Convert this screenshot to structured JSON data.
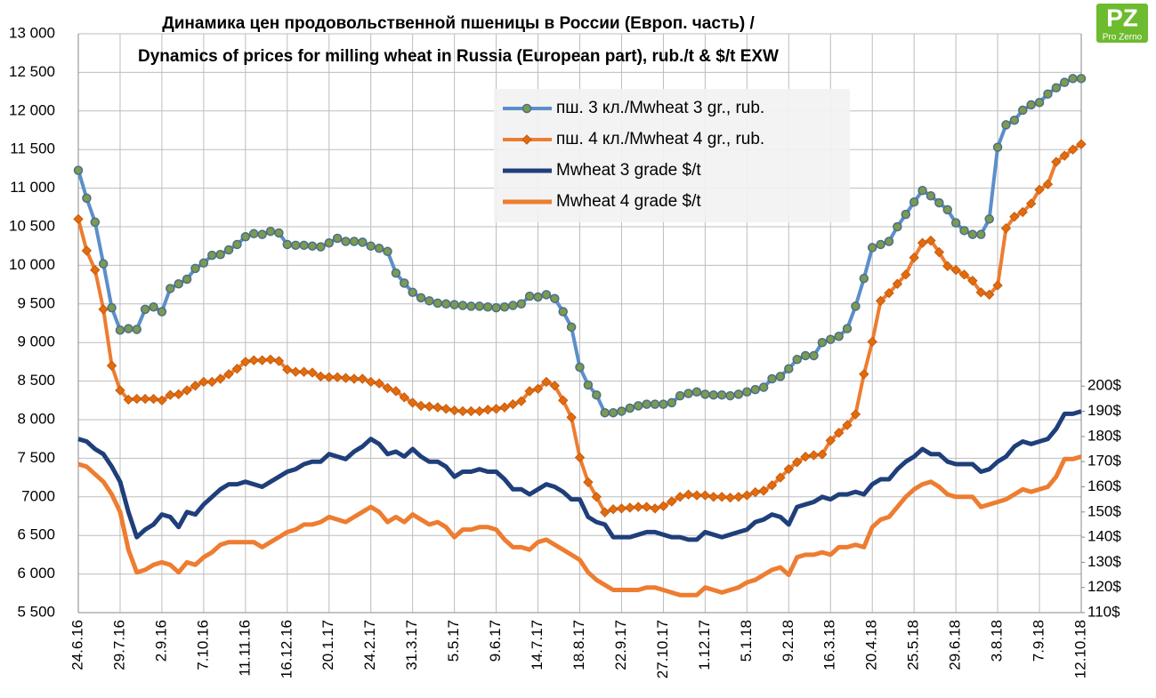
{
  "chart_data": {
    "type": "line",
    "title": "Динамика цен продовольственной пшеницы в России (Европ. часть) /",
    "subtitle": "Dynamics of prices for milling wheat in Russia (European part), rub./t & $/t EXW",
    "logo": {
      "mark": "PZ",
      "caption": "Pro Zerno"
    },
    "categories": [
      "24.6.16",
      null,
      null,
      null,
      null,
      "29.7.16",
      null,
      null,
      null,
      null,
      "2.9.16",
      null,
      null,
      null,
      null,
      "7.10.16",
      null,
      null,
      null,
      null,
      "11.11.16",
      null,
      null,
      null,
      null,
      "16.12.16",
      null,
      null,
      null,
      null,
      "20.1.17",
      null,
      null,
      null,
      null,
      "24.2.17",
      null,
      null,
      null,
      null,
      "31.3.17",
      null,
      null,
      null,
      null,
      "5.5.17",
      null,
      null,
      null,
      null,
      "9.6.17",
      null,
      null,
      null,
      null,
      "14.7.17",
      null,
      null,
      null,
      null,
      "18.8.17",
      null,
      null,
      null,
      null,
      "22.9.17",
      null,
      null,
      null,
      null,
      "27.10.17",
      null,
      null,
      null,
      null,
      "1.12.17",
      null,
      null,
      null,
      null,
      "5.1.18",
      null,
      null,
      null,
      null,
      "9.2.18",
      null,
      null,
      null,
      null,
      "16.3.18",
      null,
      null,
      null,
      null,
      "20.4.18",
      null,
      null,
      null,
      null,
      "25.5.18",
      null,
      null,
      null,
      null,
      "29.6.18",
      null,
      null,
      null,
      null,
      "3.8.18",
      null,
      null,
      null,
      null,
      "7.9.18",
      null,
      null,
      null,
      null,
      "12.10.18"
    ],
    "ylim": [
      5500,
      13000
    ],
    "yticks": [
      {
        "value": 5500,
        "label": "5 500"
      },
      {
        "value": 6000,
        "label": "6 000"
      },
      {
        "value": 6500,
        "label": "6 500"
      },
      {
        "value": 7000,
        "label": "7000"
      },
      {
        "value": 7500,
        "label": "7 500"
      },
      {
        "value": 8000,
        "label": "8 000"
      },
      {
        "value": 8500,
        "label": "8 500"
      },
      {
        "value": 9000,
        "label": "9 000"
      },
      {
        "value": 9500,
        "label": "9 500"
      },
      {
        "value": 10000,
        "label": "10 000"
      },
      {
        "value": 10500,
        "label": "10 500"
      },
      {
        "value": 11000,
        "label": "11 000"
      },
      {
        "value": 11500,
        "label": "11 500"
      },
      {
        "value": 12000,
        "label": "12 000"
      },
      {
        "value": 12500,
        "label": "12 500"
      },
      {
        "value": 13000,
        "label": "13 000"
      }
    ],
    "y2lim": [
      110,
      340
    ],
    "y2ticks": [
      {
        "value": 110,
        "label": "110$"
      },
      {
        "value": 120,
        "label": "120$"
      },
      {
        "value": 130,
        "label": "130$"
      },
      {
        "value": 140,
        "label": "140$"
      },
      {
        "value": 150,
        "label": "150$"
      },
      {
        "value": 160,
        "label": "160$"
      },
      {
        "value": 170,
        "label": "170$"
      },
      {
        "value": 180,
        "label": "180$"
      },
      {
        "value": 190,
        "label": "190$"
      },
      {
        "value": 200,
        "label": "200$"
      }
    ],
    "grid": true,
    "legend": "top-right",
    "series": [
      {
        "name": "пш. 3 кл./Mwheat 3 gr., rub.",
        "color": "#5b8fc9",
        "marker": "circle",
        "marker_color": "#7d9a4e",
        "axis": "y",
        "values": [
          11230,
          10870,
          10560,
          10020,
          9450,
          9160,
          9180,
          9170,
          9430,
          9460,
          9400,
          9700,
          9760,
          9820,
          9960,
          10030,
          10130,
          10140,
          10200,
          10270,
          10370,
          10410,
          10400,
          10440,
          10420,
          10270,
          10260,
          10260,
          10250,
          10240,
          10290,
          10350,
          10310,
          10310,
          10300,
          10250,
          10220,
          10180,
          9900,
          9770,
          9650,
          9580,
          9540,
          9510,
          9500,
          9490,
          9480,
          9470,
          9470,
          9460,
          9450,
          9460,
          9480,
          9500,
          9600,
          9590,
          9620,
          9570,
          9400,
          9200,
          8680,
          8450,
          8320,
          8090,
          8090,
          8110,
          8150,
          8180,
          8200,
          8200,
          8200,
          8220,
          8310,
          8340,
          8360,
          8330,
          8320,
          8320,
          8310,
          8330,
          8360,
          8390,
          8420,
          8530,
          8560,
          8660,
          8780,
          8830,
          8830,
          9000,
          9040,
          9080,
          9180,
          9470,
          9830,
          10230,
          10270,
          10310,
          10500,
          10660,
          10820,
          10970,
          10900,
          10810,
          10720,
          10550,
          10450,
          10400,
          10400,
          10600,
          11530,
          11820,
          11880,
          12010,
          12080,
          12110,
          12220,
          12300,
          12370,
          12420,
          12420
        ]
      },
      {
        "name": "пш. 4 кл./Mwheat 4 gr., rub.",
        "color": "#ed7d31",
        "marker": "diamond",
        "marker_color": "#e36c0a",
        "axis": "y",
        "values": [
          10600,
          10190,
          9940,
          9430,
          8700,
          8380,
          8260,
          8270,
          8270,
          8270,
          8250,
          8320,
          8330,
          8380,
          8440,
          8490,
          8490,
          8530,
          8590,
          8660,
          8750,
          8770,
          8770,
          8780,
          8760,
          8650,
          8620,
          8620,
          8610,
          8560,
          8550,
          8550,
          8540,
          8530,
          8530,
          8490,
          8470,
          8410,
          8370,
          8290,
          8220,
          8180,
          8170,
          8160,
          8140,
          8120,
          8110,
          8110,
          8110,
          8130,
          8140,
          8160,
          8200,
          8240,
          8370,
          8400,
          8490,
          8440,
          8250,
          8030,
          7510,
          7190,
          7000,
          6800,
          6840,
          6850,
          6860,
          6870,
          6870,
          6850,
          6880,
          6940,
          7000,
          7030,
          7020,
          7020,
          7000,
          7000,
          6990,
          7000,
          7020,
          7060,
          7080,
          7150,
          7250,
          7360,
          7450,
          7520,
          7540,
          7550,
          7730,
          7830,
          7930,
          8070,
          8590,
          9010,
          9540,
          9640,
          9760,
          9880,
          10100,
          10290,
          10320,
          10170,
          9990,
          9940,
          9880,
          9800,
          9650,
          9620,
          9740,
          10480,
          10630,
          10690,
          10800,
          10980,
          11050,
          11340,
          11420,
          11500,
          11570
        ]
      },
      {
        "name": "Mwheat 3 grade $/t",
        "color": "#1f3f7a",
        "axis": "y2",
        "values": [
          179,
          178,
          175,
          173,
          168,
          162,
          150,
          140,
          143,
          145,
          149,
          148,
          144,
          150,
          149,
          153,
          156,
          159,
          161,
          161,
          162,
          161,
          160,
          162,
          164,
          166,
          167,
          169,
          170,
          170,
          173,
          172,
          171,
          174,
          176,
          179,
          177,
          173,
          174,
          172,
          175,
          172,
          170,
          170,
          168,
          164,
          166,
          166,
          167,
          166,
          166,
          163,
          159,
          159,
          157,
          159,
          161,
          160,
          158,
          155,
          155,
          148,
          146,
          145,
          140,
          140,
          140,
          141,
          142,
          142,
          141,
          140,
          140,
          139,
          139,
          142,
          141,
          140,
          141,
          142,
          143,
          146,
          147,
          149,
          148,
          145,
          152,
          153,
          154,
          156,
          155,
          157,
          157,
          158,
          157,
          161,
          163,
          163,
          167,
          170,
          172,
          175,
          173,
          173,
          170,
          169,
          169,
          169,
          166,
          167,
          170,
          172,
          176,
          178,
          177,
          178,
          179,
          183,
          189,
          189,
          190
        ]
      },
      {
        "name": "Mwheat 4 grade $/t",
        "color": "#ed7d31",
        "axis": "y2",
        "values": [
          169,
          168,
          165,
          162,
          157,
          150,
          135,
          126,
          127,
          129,
          130,
          129,
          126,
          130,
          129,
          132,
          134,
          137,
          138,
          138,
          138,
          138,
          136,
          138,
          140,
          142,
          143,
          145,
          145,
          146,
          148,
          147,
          146,
          148,
          150,
          152,
          150,
          146,
          148,
          146,
          149,
          147,
          145,
          146,
          144,
          140,
          143,
          143,
          144,
          144,
          143,
          139,
          136,
          136,
          135,
          138,
          139,
          137,
          135,
          133,
          131,
          126,
          123,
          121,
          119,
          119,
          119,
          119,
          120,
          120,
          119,
          118,
          117,
          117,
          117,
          120,
          119,
          118,
          119,
          120,
          122,
          123,
          125,
          127,
          128,
          125,
          132,
          133,
          133,
          134,
          133,
          136,
          136,
          137,
          136,
          144,
          147,
          148,
          152,
          156,
          159,
          161,
          162,
          160,
          157,
          156,
          156,
          156,
          152,
          153,
          154,
          155,
          157,
          159,
          158,
          159,
          160,
          164,
          171,
          171,
          172
        ]
      }
    ]
  }
}
